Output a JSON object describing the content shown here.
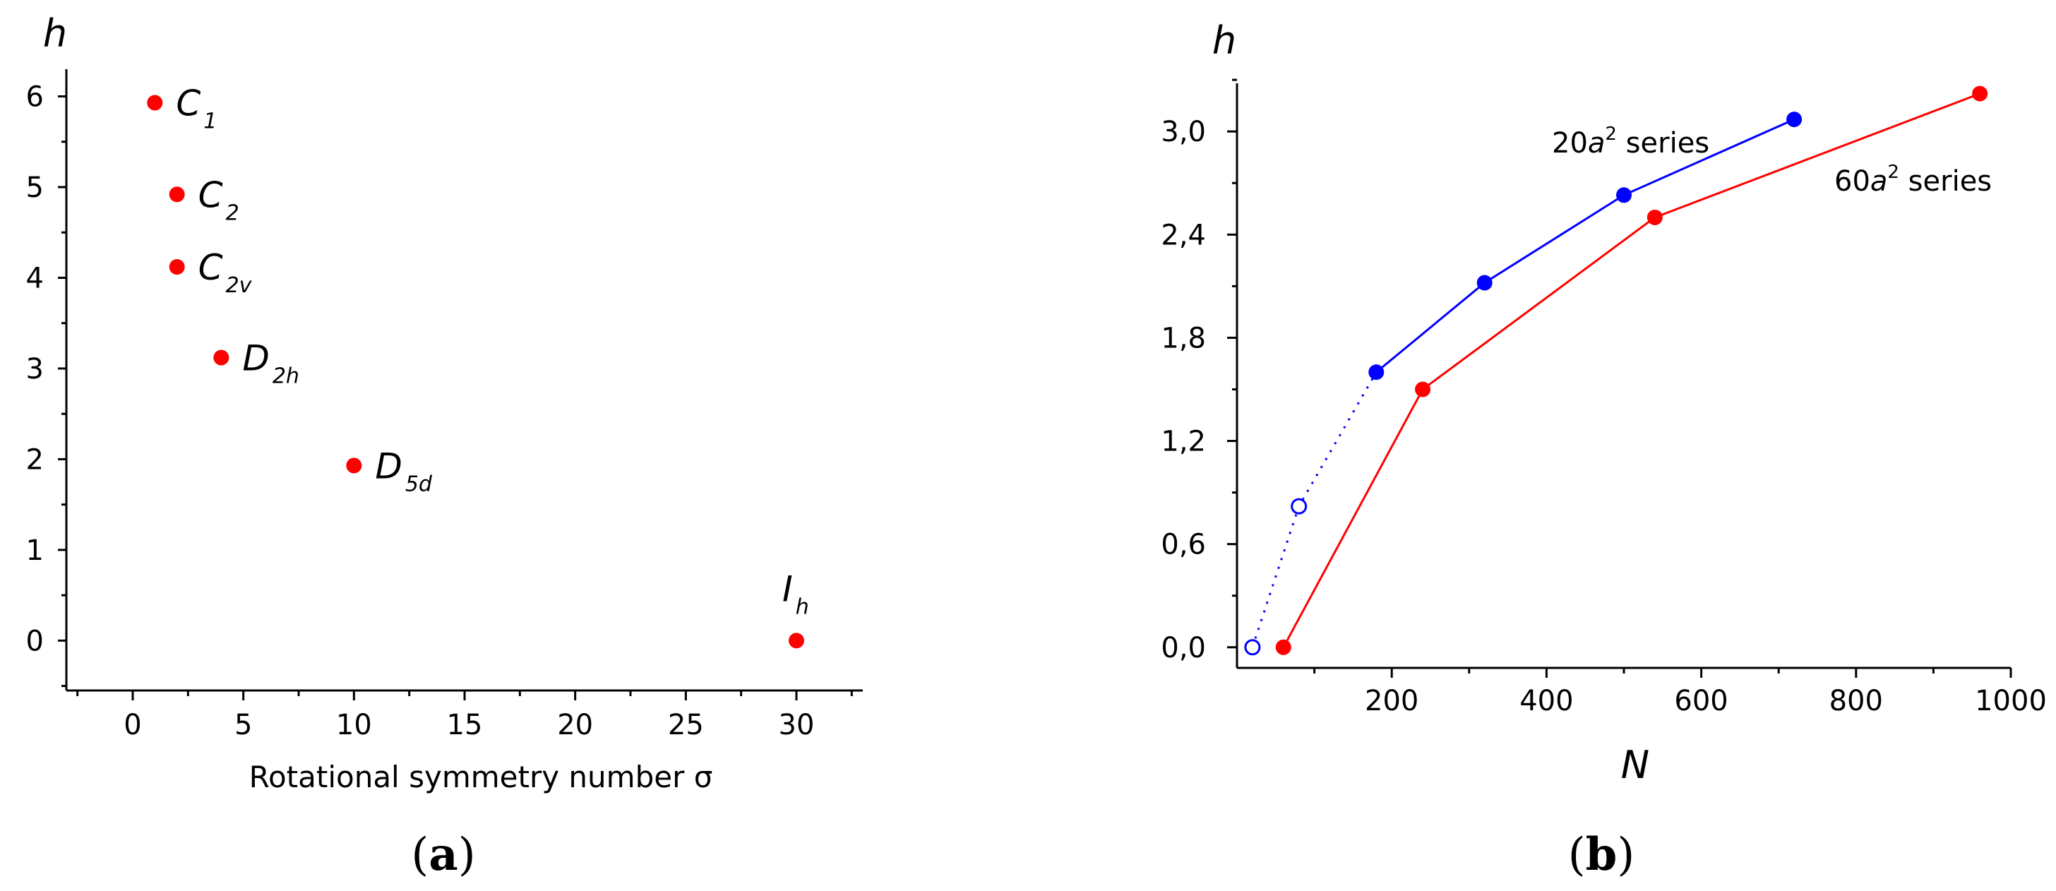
{
  "chart_data": [
    {
      "type": "scatter",
      "panel_label": {
        "open": "(",
        "letter": "a",
        "close": ")"
      },
      "title": "",
      "xlabel": "Rotational symmetry number σ",
      "ylabel": "h",
      "xlim": [
        -3,
        33
      ],
      "ylim": [
        -0.55,
        6.3
      ],
      "xticks": [
        0,
        5,
        10,
        15,
        20,
        25,
        30
      ],
      "yticks": [
        0,
        1,
        2,
        3,
        4,
        5,
        6
      ],
      "grid": false,
      "marker_color": "#ff0000",
      "points": [
        {
          "x": 1,
          "y": 5.93,
          "label": "C",
          "sub": "1"
        },
        {
          "x": 2,
          "y": 4.92,
          "label": "C",
          "sub": "2"
        },
        {
          "x": 2,
          "y": 4.12,
          "label": "C",
          "sub": "2v"
        },
        {
          "x": 4,
          "y": 3.12,
          "label": "D",
          "sub": "2h"
        },
        {
          "x": 10,
          "y": 1.93,
          "label": "D",
          "sub": "5d"
        },
        {
          "x": 30,
          "y": 0.0,
          "label": "I",
          "sub": "h"
        }
      ]
    },
    {
      "type": "line",
      "panel_label": {
        "open": "(",
        "letter": "b",
        "close": ")"
      },
      "title": "",
      "xlabel": "N",
      "ylabel": "h",
      "xlim": [
        0,
        1000
      ],
      "ylim": [
        -0.12,
        3.28
      ],
      "xticks": [
        200,
        400,
        600,
        800,
        1000
      ],
      "yticks": [
        0.0,
        0.6,
        1.2,
        1.8,
        2.4,
        3.0
      ],
      "ytick_labels": [
        "0,0",
        "0,6",
        "1,2",
        "1,8",
        "2,4",
        "3,0"
      ],
      "grid": false,
      "series": [
        {
          "name_prefix": "20",
          "name_var": "a",
          "name_sup": "2",
          "name_suffix": " series",
          "color": "#0000ff",
          "x": [
            180,
            320,
            500,
            720
          ],
          "y": [
            1.6,
            2.12,
            2.63,
            3.07
          ],
          "open_points": {
            "x": [
              20,
              80
            ],
            "y": [
              0.0,
              0.82
            ]
          }
        },
        {
          "name_prefix": "60",
          "name_var": "a",
          "name_sup": "2",
          "name_suffix": " series",
          "color": "#ff0000",
          "x": [
            60,
            240,
            540,
            960
          ],
          "y": [
            0.0,
            1.5,
            2.5,
            3.22
          ]
        }
      ]
    }
  ]
}
